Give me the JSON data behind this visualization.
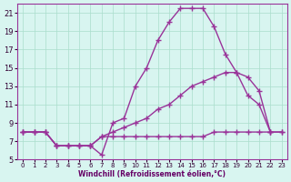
{
  "xlabel": "Windchill (Refroidissement éolien,°C)",
  "bg_color": "#d8f5f0",
  "grid_color": "#aaddcc",
  "line_color": "#993399",
  "xlim": [
    -0.5,
    23.5
  ],
  "ylim": [
    5,
    22
  ],
  "xticks": [
    0,
    1,
    2,
    3,
    4,
    5,
    6,
    7,
    8,
    9,
    10,
    11,
    12,
    13,
    14,
    15,
    16,
    17,
    18,
    19,
    20,
    21,
    22,
    23
  ],
  "yticks": [
    5,
    7,
    9,
    11,
    13,
    15,
    17,
    19,
    21
  ],
  "line1_x": [
    0,
    1,
    2,
    3,
    4,
    5,
    6,
    7,
    8,
    9,
    10,
    11,
    12,
    13,
    14,
    15,
    16,
    17,
    18,
    19,
    20,
    21,
    22
  ],
  "line1_y": [
    8,
    8,
    8,
    6.5,
    6.5,
    6.5,
    6.5,
    5.5,
    9,
    9.5,
    13,
    15,
    18,
    20,
    21.5,
    21.5,
    21.5,
    19.5,
    16.5,
    14.5,
    12,
    11,
    8
  ],
  "line2_x": [
    0,
    1,
    2,
    3,
    4,
    5,
    6,
    7,
    8,
    9,
    10,
    11,
    12,
    13,
    14,
    15,
    16,
    17,
    18,
    19,
    20,
    21,
    22,
    23
  ],
  "line2_y": [
    8,
    8,
    8,
    6.5,
    6.5,
    6.5,
    6.5,
    7.5,
    7.5,
    7.5,
    7.5,
    7.5,
    7.5,
    7.5,
    7.5,
    7.5,
    7.5,
    8,
    8,
    8,
    8,
    8,
    8,
    8
  ],
  "line3_x": [
    0,
    1,
    2,
    3,
    4,
    5,
    6,
    7,
    8,
    9,
    10,
    11,
    12,
    13,
    14,
    15,
    16,
    17,
    18,
    19,
    20,
    21,
    22,
    23
  ],
  "line3_y": [
    8,
    8,
    8,
    6.5,
    6.5,
    6.5,
    6.5,
    7.5,
    8,
    8.5,
    9,
    9.5,
    10.5,
    11,
    12,
    13,
    13.5,
    14,
    14.5,
    14.5,
    14,
    12.5,
    8,
    8
  ]
}
